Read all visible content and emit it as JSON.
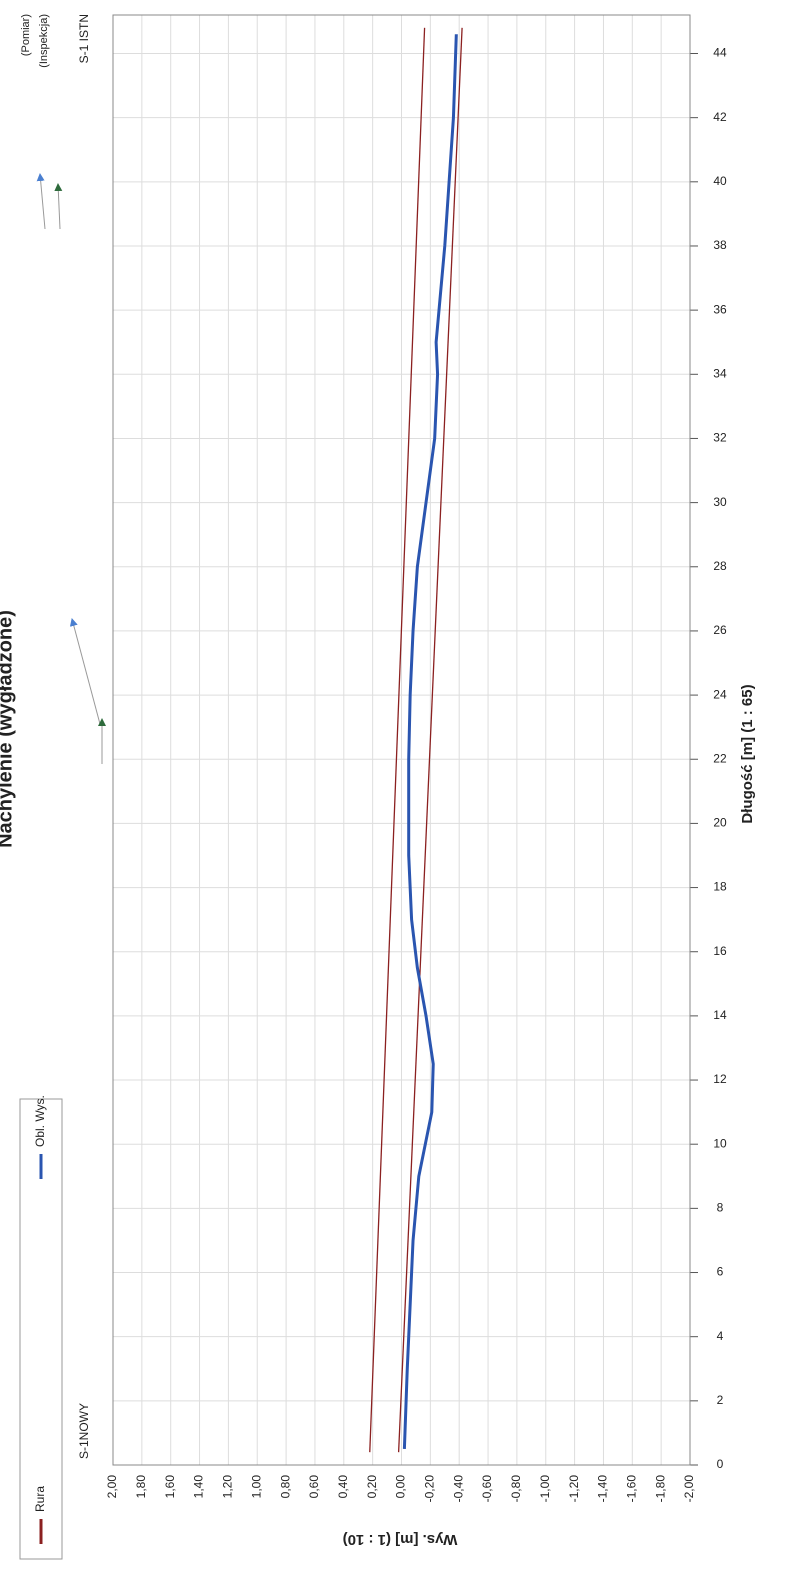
{
  "chart_data": {
    "type": "line",
    "title": "Nachylenie (wygładzone)",
    "xlabel": "Długość [m] (1 : 65)",
    "ylabel": "Wys. [m] (1 : 10)",
    "annotations": [
      "S-1NOWY",
      "S-1 ISTN",
      "(Pomiar)",
      "(Inspekcja)"
    ],
    "xlim": [
      0,
      45.2
    ],
    "ylim": [
      -2,
      2
    ],
    "xticks": [
      0,
      2,
      4,
      6,
      8,
      10,
      12,
      14,
      16,
      18,
      20,
      22,
      24,
      26,
      28,
      30,
      32,
      34,
      36,
      38,
      40,
      42,
      44
    ],
    "yticks": [
      {
        "value": 2,
        "label": "2,00"
      },
      {
        "value": 1.8,
        "label": "1,80"
      },
      {
        "value": 1.6,
        "label": "1,60"
      },
      {
        "value": 1.4,
        "label": "1,40"
      },
      {
        "value": 1.2,
        "label": "1,20"
      },
      {
        "value": 1,
        "label": "1,00"
      },
      {
        "value": 0.8,
        "label": "0,80"
      },
      {
        "value": 0.6,
        "label": "0,60"
      },
      {
        "value": 0.4,
        "label": "0,40"
      },
      {
        "value": 0.2,
        "label": "0,20"
      },
      {
        "value": 0,
        "label": "0,00"
      },
      {
        "value": -0.2,
        "label": "-0,20"
      },
      {
        "value": -0.4,
        "label": "-0,40"
      },
      {
        "value": -0.6,
        "label": "-0,60"
      },
      {
        "value": -0.8,
        "label": "-0,80"
      },
      {
        "value": -1,
        "label": "-1,00"
      },
      {
        "value": -1.2,
        "label": "-1,20"
      },
      {
        "value": -1.4,
        "label": "-1,40"
      },
      {
        "value": -1.6,
        "label": "-1,60"
      },
      {
        "value": -1.8,
        "label": "-1,80"
      },
      {
        "value": -2,
        "label": "-2,00"
      }
    ],
    "grid": true,
    "series": [
      {
        "name": "Rura",
        "color": "#8b2020",
        "x": [
          0.4,
          44.8
        ],
        "values": [
          0.22,
          -0.16
        ],
        "values_lower": [
          0.02,
          -0.42
        ]
      },
      {
        "name": "Obl. Wys.",
        "color": "#2a55b0",
        "x": [
          0.5,
          3,
          7,
          9,
          11,
          12.5,
          14,
          15.5,
          17,
          19,
          20,
          22,
          24,
          26,
          28,
          30,
          32,
          34,
          35,
          36,
          38,
          40,
          42,
          44.6
        ],
        "values": [
          -0.02,
          -0.04,
          -0.08,
          -0.12,
          -0.21,
          -0.22,
          -0.17,
          -0.11,
          -0.07,
          -0.05,
          -0.05,
          -0.05,
          -0.06,
          -0.08,
          -0.11,
          -0.17,
          -0.23,
          -0.25,
          -0.24,
          -0.26,
          -0.3,
          -0.33,
          -0.36,
          -0.38
        ]
      }
    ]
  }
}
